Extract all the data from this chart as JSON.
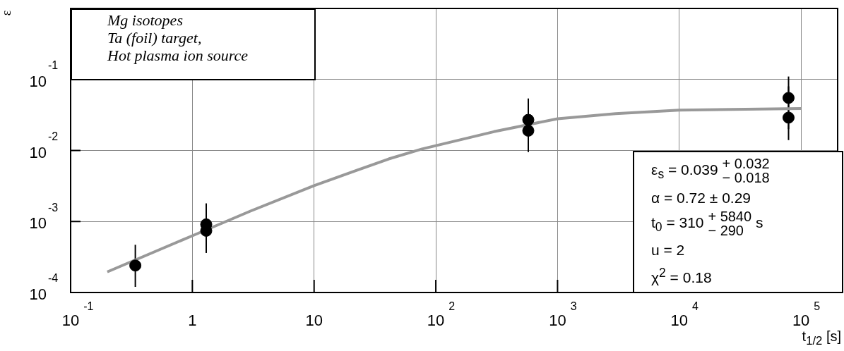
{
  "chart_data": {
    "type": "scatter",
    "xlabel": "t$_{1/2}$ [s]",
    "ylabel": "ε",
    "log": "xy",
    "grid": true,
    "legend": false,
    "marker": "circle",
    "xlim": [
      0.1,
      200000
    ],
    "ylim": [
      0.0001,
      1
    ],
    "xticks": [
      {
        "value": 0.1,
        "label": "10$^{-1}$"
      },
      1,
      10,
      {
        "value": 100,
        "label": "10$^{2}$"
      },
      {
        "value": 1000,
        "label": "10$^{3}$"
      },
      {
        "value": 10000,
        "label": "10$^{4}$"
      },
      {
        "value": 100000,
        "label": "10$^{5}$"
      }
    ],
    "yticks": [
      {
        "value": 0.0001,
        "label": "10$^{-4}$"
      },
      {
        "value": 0.001,
        "label": "10$^{-3}$"
      },
      {
        "value": 0.01,
        "label": "10$^{-2}$"
      },
      {
        "value": 0.1,
        "label": "10$^{-1}$"
      }
    ],
    "series": [
      {
        "color": "#000000",
        "x": [
          0.34,
          1.3,
          1.3,
          575,
          575,
          79000,
          79000
        ],
        "values": [
          0.00024,
          0.00091,
          0.00074,
          0.027,
          0.019,
          0.055,
          0.029
        ],
        "errors": [
          [
            0.00012,
            0.00047
          ],
          [
            0.00045,
            0.0018
          ],
          [
            0.00036,
            0.0013
          ],
          [
            0.013,
            0.054
          ],
          [
            0.0095,
            0.04
          ],
          [
            0.02,
            0.11
          ],
          [
            0.014,
            0.08
          ]
        ]
      },
      {
        "type": "line",
        "color": "#999999",
        "marker": "none",
        "x": [
          0.2,
          1,
          3,
          10,
          41,
          77,
          300,
          1000,
          3000,
          10000,
          100000
        ],
        "values": [
          0.000195,
          0.00063,
          0.0014,
          0.0032,
          0.0076,
          0.0105,
          0.0184,
          0.028,
          0.033,
          0.037,
          0.039
        ]
      }
    ],
    "annotations": [
      "Mg isotopes\nTa (foil) target,\nHot plasma ion source",
      "ε$_{s}$ = 0.039 $^{+ 0.032}$$_{− 0.018}$\nα = 0.72 ± 0.29\nt$_{0}$ = 310 $^{+ 5840}$$_{− 290}$ s\nu = 2\nχ$^{2}$ = 0.18"
    ]
  }
}
